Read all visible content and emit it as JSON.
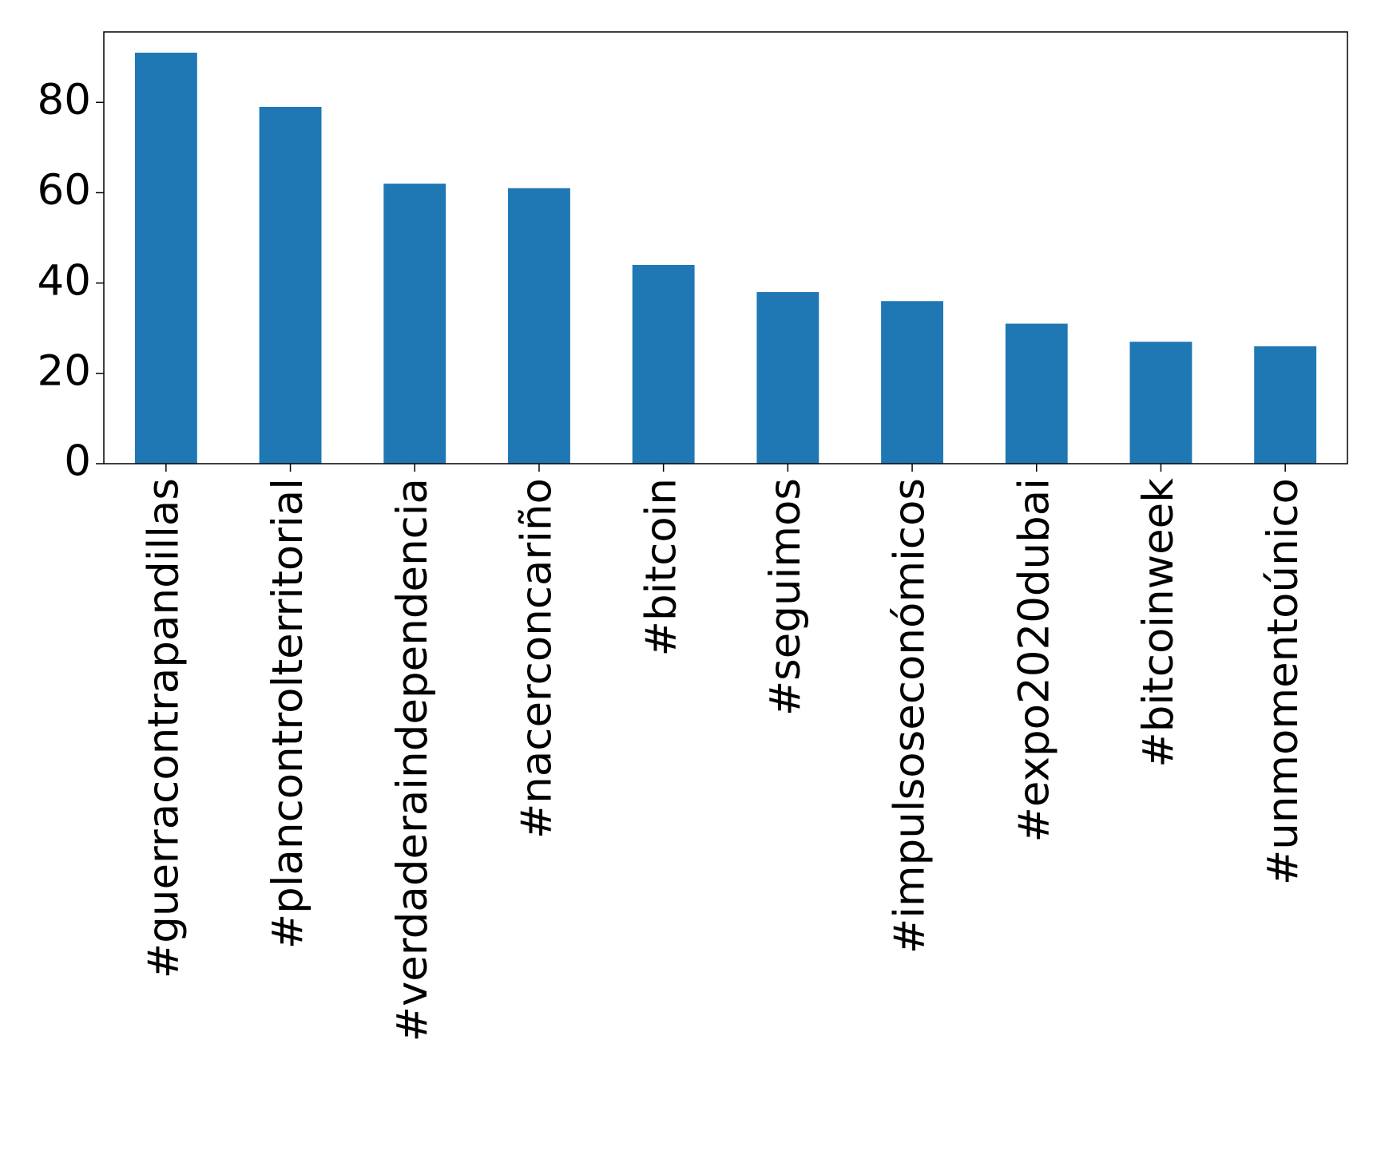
{
  "chart_data": {
    "type": "bar",
    "categories": [
      "#guerracontrapandillas",
      "#plancontrolterritorial",
      "#verdaderaindependencia",
      "#nacerconcariño",
      "#bitcoin",
      "#seguimos",
      "#impulsoseconómicos",
      "#expo2020dubai",
      "#bitcoinweek",
      "#unmomentoúnico"
    ],
    "values": [
      91,
      79,
      62,
      61,
      44,
      38,
      36,
      31,
      27,
      26
    ],
    "color": "#1f77b4",
    "ylim": [
      0,
      95.6
    ],
    "yticks": [
      0,
      20,
      40,
      60,
      80
    ],
    "grid": false
  }
}
